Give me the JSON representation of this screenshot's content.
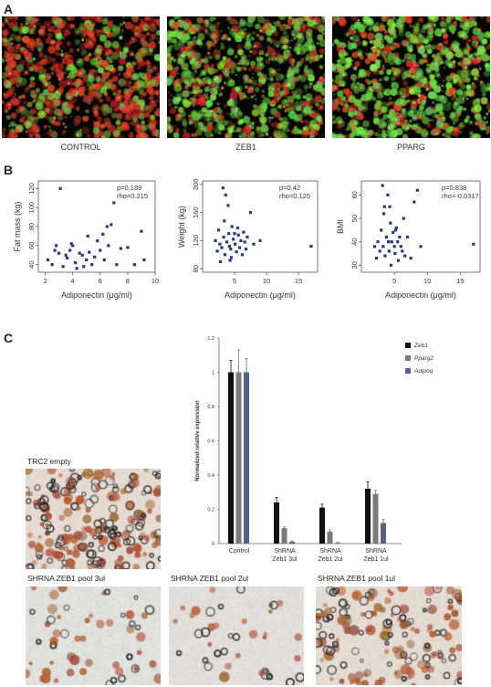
{
  "panel_letters": {
    "a": "A",
    "b": "B",
    "c": "C"
  },
  "panel_a": {
    "images": [
      {
        "label": "CONTROL",
        "palette": "red-green-dim"
      },
      {
        "label": "ZEB1",
        "palette": "green-dominant"
      },
      {
        "label": "PPARG",
        "palette": "green-bright"
      }
    ]
  },
  "panel_c": {
    "images": {
      "trc2": {
        "label": "TRC2 empty"
      },
      "pool3": {
        "label": "SHRNA ZEB1 pool 3ul"
      },
      "pool2": {
        "label": "SHRNA ZEB1 pool 2ul"
      },
      "pool1": {
        "label": "SHRNA ZEB1 pool 1ul"
      }
    }
  },
  "chart_data": [
    {
      "type": "scatter",
      "xlabel": "Adiponectin (μg/ml)",
      "ylabel": "Fat mass (kg)",
      "xlim": [
        1.5,
        10
      ],
      "ylim": [
        32,
        128
      ],
      "xticks": [
        2,
        4,
        6,
        8,
        10
      ],
      "yticks": [
        40,
        60,
        80,
        100,
        120
      ],
      "annotation": [
        "p=0.189",
        "rho=0.215"
      ],
      "color": "#2b3a7a",
      "points": [
        [
          2.2,
          45
        ],
        [
          2.5,
          40
        ],
        [
          2.7,
          55
        ],
        [
          2.8,
          60
        ],
        [
          3.0,
          52
        ],
        [
          3.1,
          120
        ],
        [
          3.3,
          38
        ],
        [
          3.5,
          50
        ],
        [
          3.6,
          47
        ],
        [
          3.8,
          55
        ],
        [
          4.0,
          60
        ],
        [
          4.2,
          42
        ],
        [
          4.3,
          36
        ],
        [
          4.5,
          52
        ],
        [
          4.7,
          50
        ],
        [
          5.0,
          45
        ],
        [
          5.1,
          70
        ],
        [
          5.2,
          53
        ],
        [
          5.4,
          40
        ],
        [
          5.6,
          48
        ],
        [
          5.8,
          65
        ],
        [
          6.0,
          55
        ],
        [
          6.2,
          72
        ],
        [
          6.5,
          80
        ],
        [
          6.6,
          60
        ],
        [
          6.8,
          82
        ],
        [
          7.0,
          105
        ],
        [
          7.2,
          40
        ],
        [
          7.5,
          57
        ],
        [
          8.0,
          58
        ],
        [
          8.5,
          40
        ],
        [
          9.0,
          75
        ],
        [
          9.2,
          45
        ],
        [
          4.8,
          38
        ],
        [
          3.9,
          62
        ],
        [
          6.3,
          45
        ]
      ]
    },
    {
      "type": "scatter",
      "xlabel": "Adiponectin (μg/ml)",
      "ylabel": "Weight (kg)",
      "xlim": [
        0,
        18
      ],
      "ylim": [
        75,
        205
      ],
      "xticks": [
        5,
        10,
        15
      ],
      "yticks": [
        80,
        120,
        160,
        200
      ],
      "annotation": [
        "p=0.42",
        "rho=0.125"
      ],
      "color": "#2b3a7a",
      "points": [
        [
          2.0,
          120
        ],
        [
          2.3,
          105
        ],
        [
          2.5,
          135
        ],
        [
          2.7,
          115
        ],
        [
          2.8,
          90
        ],
        [
          3.0,
          110
        ],
        [
          3.2,
          195
        ],
        [
          3.3,
          125
        ],
        [
          3.5,
          100
        ],
        [
          3.6,
          185
        ],
        [
          3.8,
          118
        ],
        [
          4.0,
          170
        ],
        [
          4.1,
          130
        ],
        [
          4.2,
          112
        ],
        [
          4.4,
          108
        ],
        [
          4.5,
          96
        ],
        [
          4.6,
          140
        ],
        [
          4.8,
          122
        ],
        [
          5.0,
          130
        ],
        [
          5.1,
          115
        ],
        [
          5.3,
          104
        ],
        [
          5.5,
          138
        ],
        [
          5.6,
          128
        ],
        [
          5.8,
          110
        ],
        [
          6.0,
          120
        ],
        [
          6.2,
          100
        ],
        [
          6.4,
          132
        ],
        [
          6.6,
          118
        ],
        [
          6.8,
          108
        ],
        [
          7.0,
          125
        ],
        [
          7.5,
          160
        ],
        [
          8.0,
          115
        ],
        [
          9.0,
          120
        ],
        [
          17.0,
          112
        ],
        [
          3.4,
          148
        ],
        [
          4.3,
          92
        ]
      ]
    },
    {
      "type": "scatter",
      "xlabel": "Adiponectin (μg/ml)",
      "ylabel": "BMI",
      "xlim": [
        0,
        18
      ],
      "ylim": [
        27,
        66
      ],
      "xticks": [
        5,
        10,
        15
      ],
      "yticks": [
        30,
        40,
        50,
        60
      ],
      "annotation": [
        "p=0.838",
        "rho=-0.0317"
      ],
      "color": "#2b3a7a",
      "points": [
        [
          2.0,
          38
        ],
        [
          2.3,
          33
        ],
        [
          2.5,
          40
        ],
        [
          2.8,
          36
        ],
        [
          3.0,
          45
        ],
        [
          3.2,
          64
        ],
        [
          3.3,
          38
        ],
        [
          3.5,
          55
        ],
        [
          3.6,
          34
        ],
        [
          3.8,
          42
        ],
        [
          4.0,
          60
        ],
        [
          4.1,
          40
        ],
        [
          4.2,
          36
        ],
        [
          4.4,
          48
        ],
        [
          4.5,
          30
        ],
        [
          4.6,
          40
        ],
        [
          4.8,
          44
        ],
        [
          5.0,
          38
        ],
        [
          5.1,
          35
        ],
        [
          5.3,
          46
        ],
        [
          5.5,
          40
        ],
        [
          5.6,
          32
        ],
        [
          5.8,
          42
        ],
        [
          6.0,
          38
        ],
        [
          6.2,
          36
        ],
        [
          6.4,
          50
        ],
        [
          6.6,
          34
        ],
        [
          7.0,
          42
        ],
        [
          7.5,
          33
        ],
        [
          8.0,
          57
        ],
        [
          8.5,
          62
        ],
        [
          9.0,
          38
        ],
        [
          17.0,
          39
        ],
        [
          3.4,
          52
        ],
        [
          4.3,
          55
        ],
        [
          5.2,
          45
        ]
      ]
    },
    {
      "type": "bar",
      "ylabel": "Normalized relative expression",
      "ylim": [
        0,
        1.2
      ],
      "yticks": [
        0,
        0.2,
        0.4,
        0.6,
        0.8,
        1,
        1.2
      ],
      "categories": [
        [
          "Control"
        ],
        [
          "ShRNA",
          "Zeb1 3ul"
        ],
        [
          "ShRNA",
          "Zeb1 2ul"
        ],
        [
          "ShRNA",
          "Zeb1 1ul"
        ]
      ],
      "series": [
        {
          "name": "Zeb1",
          "color": "#111111",
          "values": [
            1.0,
            0.24,
            0.21,
            0.32
          ],
          "errors": [
            0.07,
            0.03,
            0.02,
            0.04
          ]
        },
        {
          "name": "Pparg2",
          "color": "#7a7a7a",
          "values": [
            1.0,
            0.09,
            0.07,
            0.29
          ],
          "errors": [
            0.13,
            0.01,
            0.01,
            0.02
          ]
        },
        {
          "name": "Adipoq",
          "color": "#55618c",
          "values": [
            1.0,
            0.01,
            0.004,
            0.12
          ],
          "errors": [
            0.08,
            0.005,
            0.002,
            0.02
          ]
        }
      ],
      "legend_placement": "top-right"
    }
  ]
}
